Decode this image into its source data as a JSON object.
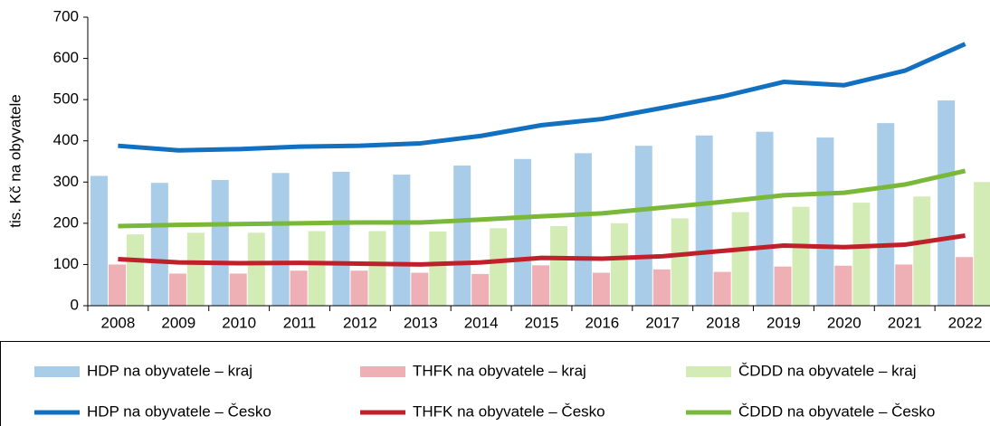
{
  "chart_data": {
    "type": "bar",
    "y_label": "tis. Kč na obyvatele",
    "categories": [
      "2008",
      "2009",
      "2010",
      "2011",
      "2012",
      "2013",
      "2014",
      "2015",
      "2016",
      "2017",
      "2018",
      "2019",
      "2020",
      "2021",
      "2022"
    ],
    "series": [
      {
        "name": "HDP na obyvatele – kraj",
        "type": "bar",
        "color": "#a9cde9",
        "values": [
          315,
          298,
          305,
          322,
          325,
          318,
          340,
          356,
          370,
          388,
          413,
          422,
          408,
          443,
          498
        ]
      },
      {
        "name": "THFK na obyvatele – kraj",
        "type": "bar",
        "color": "#eeb0b5",
        "values": [
          100,
          78,
          78,
          85,
          85,
          80,
          77,
          98,
          80,
          88,
          82,
          95,
          97,
          100,
          118
        ]
      },
      {
        "name": "ČDDD na obyvatele – kraj",
        "type": "bar",
        "color": "#d3ebb5",
        "values": [
          173,
          177,
          177,
          181,
          181,
          180,
          188,
          193,
          200,
          212,
          227,
          240,
          250,
          265,
          300
        ]
      },
      {
        "name": "HDP na obyvatele – Česko",
        "type": "line",
        "color": "#1170c0",
        "values": [
          388,
          377,
          380,
          386,
          388,
          394,
          412,
          438,
          453,
          480,
          508,
          543,
          535,
          570,
          635
        ]
      },
      {
        "name": "THFK na obyvatele – Česko",
        "type": "line",
        "color": "#c0202a",
        "values": [
          113,
          105,
          103,
          104,
          102,
          100,
          105,
          116,
          114,
          120,
          133,
          146,
          142,
          148,
          170
        ]
      },
      {
        "name": "ČDDD na obyvatele – Česko",
        "type": "line",
        "color": "#7ab83a",
        "values": [
          193,
          196,
          198,
          200,
          202,
          202,
          209,
          217,
          224,
          238,
          252,
          268,
          274,
          294,
          327
        ]
      }
    ],
    "ylim": [
      0,
      700
    ],
    "yticks": [
      0,
      100,
      200,
      300,
      400,
      500,
      600,
      700
    ],
    "grid": false
  }
}
